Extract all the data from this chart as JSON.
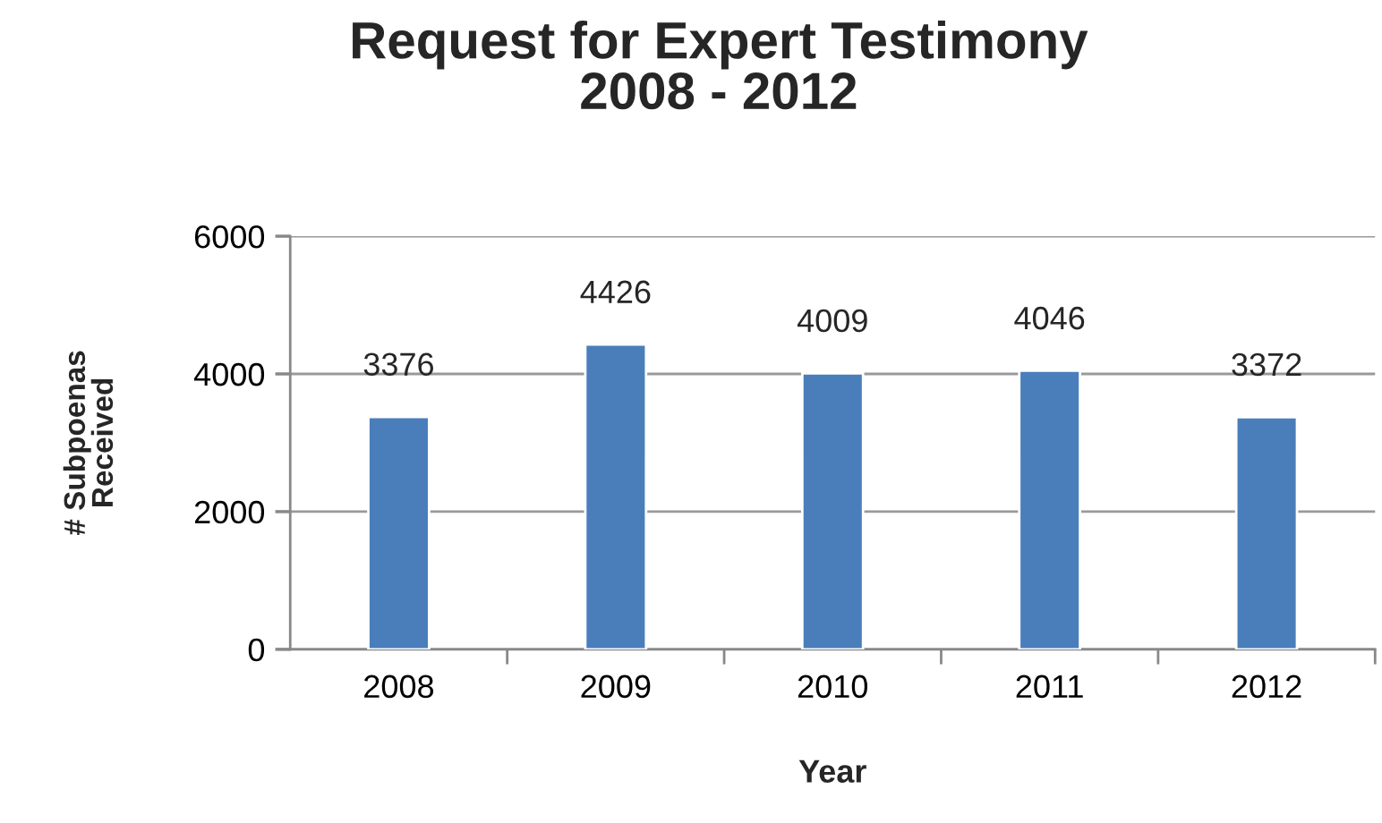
{
  "chart_data": {
    "type": "bar",
    "title": "Request for Expert Testimony\n2008 - 2012",
    "xlabel": "Year",
    "ylabel": "# Subpoenas\nReceived",
    "categories": [
      "2008",
      "2009",
      "2010",
      "2011",
      "2012"
    ],
    "values": [
      3376,
      4426,
      4009,
      4046,
      3372
    ],
    "color": "#4a7ebb",
    "ylim": [
      0,
      6000
    ],
    "yticks": [
      0,
      2000,
      4000,
      6000
    ],
    "grid": "y",
    "data_labels": true
  }
}
